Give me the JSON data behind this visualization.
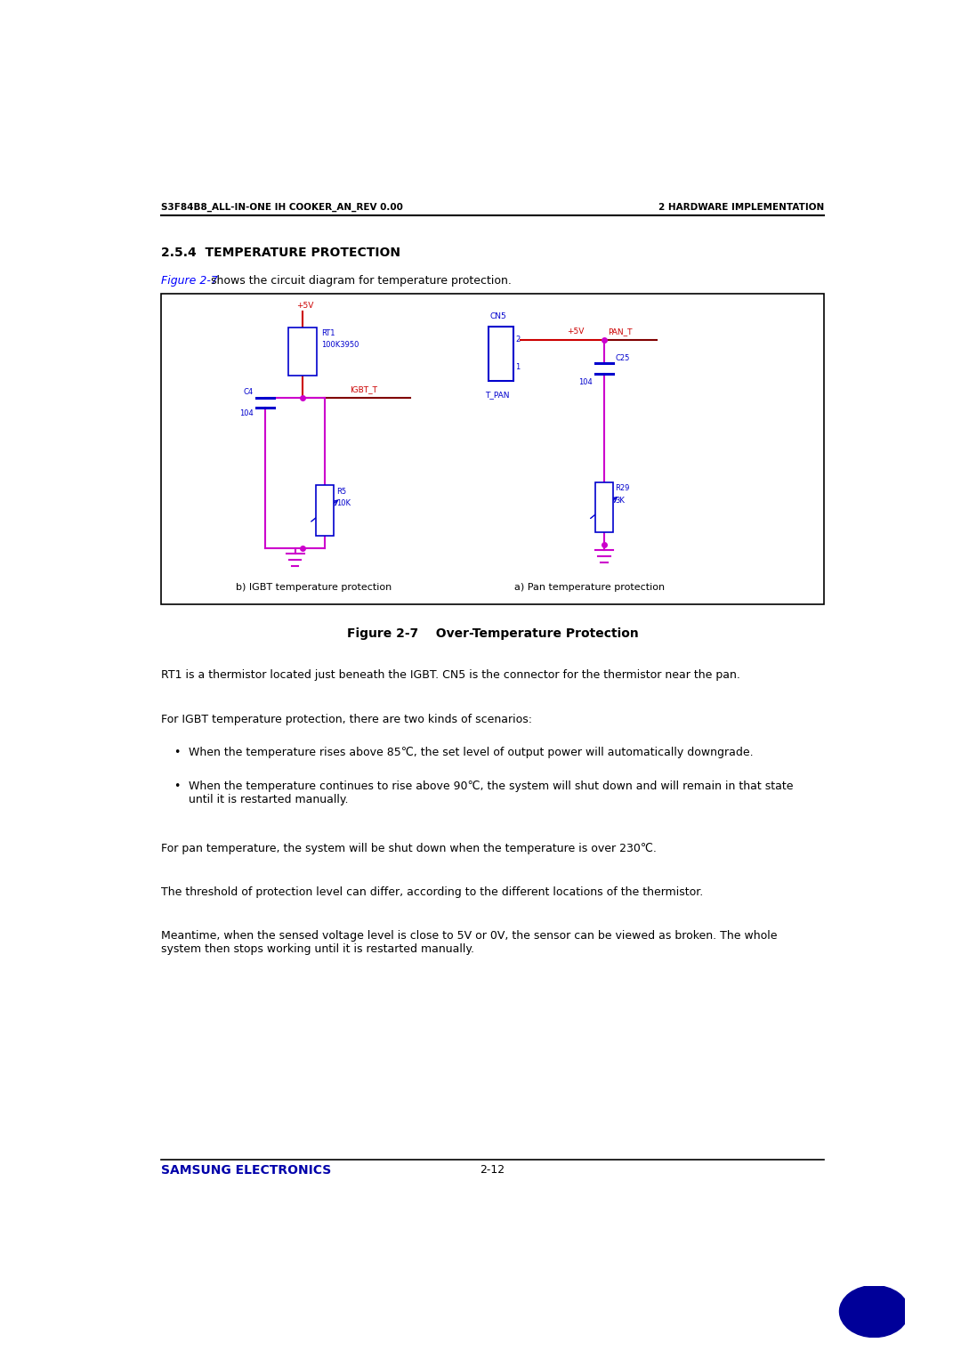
{
  "page_width": 10.8,
  "page_height": 15.27,
  "bg_color": "#ffffff",
  "header_left": "S3F84B8_ALL-IN-ONE IH COOKER_AN_REV 0.00",
  "header_right": "2 HARDWARE IMPLEMENTATION",
  "header_color": "#000000",
  "section_title": "2.5.4  TEMPERATURE PROTECTION",
  "section_title_color": "#000000",
  "figure_caption": "Figure 2-7    Over-Temperature Protection",
  "figure_label_left": "b) IGBT temperature protection",
  "figure_label_right": "a) Pan temperature protection",
  "body_texts": [
    "RT1 is a thermistor located just beneath the IGBT. CN5 is the connector for the thermistor near the pan.",
    "For IGBT temperature protection, there are two kinds of scenarios:",
    "When the temperature rises above 85℃, the set level of output power will automatically downgrade.",
    "When the temperature continues to rise above 90℃, the system will shut down and will remain in that state\nuntil it is restarted manually.",
    "For pan temperature, the system will be shut down when the temperature is over 230℃.",
    "The threshold of protection level can differ, according to the different locations of the thermistor.",
    "Meantime, when the sensed voltage level is close to 5V or 0V, the sensor can be viewed as broken. The whole\nsystem then stops working until it is restarted manually."
  ],
  "blue_color": "#0000cd",
  "red_color": "#cc0000",
  "magenta_color": "#cc00cc",
  "dark_red": "#800000",
  "samsung_blue": "#0000aa",
  "footer_page": "2-12",
  "link_color": "#0000ff"
}
